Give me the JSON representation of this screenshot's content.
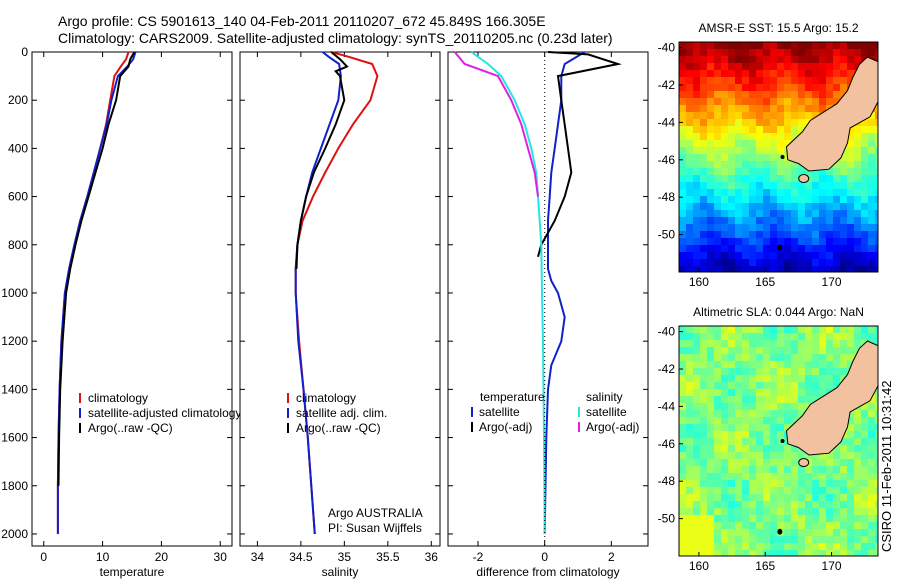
{
  "header": {
    "line1": "Argo profile: CS 5901613_140 04-Feb-2011 20110207_672 45.849S 166.305E",
    "line2": "Climatology: CARS2009. Satellite-adjusted climatology: synTS_20110205.nc (0.23d later)"
  },
  "side_label": "CSIRO 11-Feb-2011 10:31:42",
  "colors": {
    "climatology": "#dd1111",
    "satellite": "#1020cc",
    "argo": "#000000",
    "salinity_satellite": "#22e6e6",
    "salinity_argo": "#e020e0",
    "land": "#f2c19f"
  },
  "chart_data": [
    {
      "type": "line",
      "panel": "temperature",
      "xlabel": "temperature",
      "ylabel": "",
      "xlim": [
        -2,
        32
      ],
      "ylim": [
        2050,
        0
      ],
      "y_reversed": true,
      "xticks": [
        0,
        10,
        20,
        30
      ],
      "yticks": [
        0,
        200,
        400,
        600,
        800,
        1000,
        1200,
        1400,
        1600,
        1800,
        2000
      ],
      "legend": {
        "placement": "lower-right",
        "entries": [
          "climatology",
          "satellite-adjusted climatology",
          "Argo(..raw -QC)"
        ]
      },
      "series": [
        {
          "name": "climatology",
          "color_key": "climatology",
          "x": [
            14.4,
            14.0,
            13.1,
            12.0,
            11.3,
            10.6,
            9.6,
            8.5,
            7.4,
            6.2,
            5.2,
            4.3,
            3.6,
            3.0,
            2.7,
            2.5,
            2.4,
            2.4
          ],
          "y": [
            0,
            30,
            60,
            100,
            200,
            300,
            400,
            500,
            600,
            700,
            800,
            900,
            1000,
            1200,
            1400,
            1600,
            1800,
            2000
          ]
        },
        {
          "name": "satellite-adjusted climatology",
          "color_key": "satellite",
          "x": [
            15.6,
            15.2,
            14.2,
            12.6,
            11.5,
            10.7,
            9.6,
            8.5,
            7.4,
            6.2,
            5.2,
            4.3,
            3.6,
            3.0,
            2.7,
            2.5,
            2.4,
            2.4
          ],
          "y": [
            0,
            30,
            60,
            100,
            200,
            300,
            400,
            500,
            600,
            700,
            800,
            900,
            1000,
            1200,
            1400,
            1600,
            1800,
            2000
          ]
        },
        {
          "name": "Argo(..raw -QC)",
          "color_key": "argo",
          "x": [
            15.4,
            14.7,
            14.4,
            13.0,
            12.3,
            11.0,
            10.0,
            8.8,
            7.6,
            6.4,
            5.4,
            4.5,
            3.8,
            3.2,
            2.8,
            2.6,
            2.5
          ],
          "y": [
            0,
            30,
            60,
            100,
            200,
            300,
            400,
            500,
            600,
            700,
            800,
            900,
            1000,
            1200,
            1400,
            1600,
            1800
          ]
        }
      ]
    },
    {
      "type": "line",
      "panel": "salinity",
      "xlabel": "salinity",
      "ylabel": "",
      "xlim": [
        33.8,
        36.1
      ],
      "ylim": [
        2050,
        0
      ],
      "y_reversed": true,
      "xticks": [
        34,
        34.5,
        35,
        35.5,
        36
      ],
      "legend": {
        "placement": "lower-right",
        "entries": [
          "climatology",
          "satellite adj. clim.",
          "Argo(..raw -QC)"
        ]
      },
      "annotation": [
        "Argo AUSTRALIA",
        "PI: Susan Wijffels"
      ],
      "series": [
        {
          "name": "climatology",
          "color_key": "climatology",
          "x": [
            34.85,
            35.05,
            35.32,
            35.38,
            35.3,
            35.1,
            34.93,
            34.78,
            34.64,
            34.52,
            34.46,
            34.44,
            34.44,
            34.48,
            34.53,
            34.58,
            34.62,
            34.66
          ],
          "y": [
            0,
            20,
            50,
            100,
            200,
            300,
            400,
            500,
            600,
            700,
            800,
            900,
            1000,
            1200,
            1400,
            1600,
            1800,
            2000
          ]
        },
        {
          "name": "satellite adj. clim.",
          "color_key": "satellite",
          "x": [
            34.75,
            34.82,
            34.94,
            34.96,
            34.93,
            34.83,
            34.73,
            34.63,
            34.56,
            34.5,
            34.46,
            34.44,
            34.44,
            34.47,
            34.53,
            34.58,
            34.62,
            34.66
          ],
          "y": [
            0,
            20,
            50,
            100,
            200,
            300,
            400,
            500,
            600,
            700,
            800,
            900,
            1000,
            1200,
            1400,
            1600,
            1800,
            2000
          ]
        },
        {
          "name": "Argo(..raw -QC)",
          "color_key": "argo",
          "x": [
            34.85,
            34.95,
            35.03,
            34.9,
            34.95,
            35.0,
            34.9,
            34.78,
            34.65,
            34.56,
            34.5,
            34.46,
            34.45
          ],
          "y": [
            0,
            30,
            60,
            80,
            100,
            200,
            300,
            400,
            500,
            600,
            700,
            800,
            900
          ]
        }
      ]
    },
    {
      "type": "line",
      "panel": "difference",
      "xlabel": "difference from climatology",
      "ylabel": "",
      "xlim": [
        -2.9,
        3.1
      ],
      "ylim": [
        2050,
        0
      ],
      "y_reversed": true,
      "xticks": [
        -2,
        0,
        2
      ],
      "legend": {
        "placement": "lower-right",
        "column_headers": [
          "temperature",
          "salinity"
        ],
        "entries": [
          "satellite",
          "Argo(-adj)",
          "satellite",
          "Argo(-adj)"
        ]
      },
      "series": [
        {
          "name": "temperature satellite",
          "color_key": "satellite",
          "x": [
            1.2,
            0.6,
            0.5,
            0.5,
            0.4,
            0.3,
            0.2,
            0.15,
            0.1,
            0.1,
            0.1,
            0.2,
            0.4,
            0.6,
            0.5,
            0.2,
            0.1,
            0.05,
            0.0
          ],
          "y": [
            0,
            50,
            100,
            200,
            300,
            400,
            500,
            600,
            700,
            800,
            900,
            950,
            1000,
            1100,
            1200,
            1300,
            1400,
            1600,
            2000
          ]
        },
        {
          "name": "temperature Argo(-adj)",
          "color_key": "argo",
          "x": [
            0.1,
            1.3,
            2.2,
            0.4,
            0.5,
            0.7,
            0.8,
            0.6,
            0.3,
            -0.1,
            -0.2
          ],
          "y": [
            0,
            10,
            50,
            100,
            200,
            400,
            500,
            600,
            700,
            800,
            850
          ]
        },
        {
          "name": "salinity satellite",
          "color_key": "salinity_satellite",
          "x": [
            -2.2,
            -1.7,
            -1.3,
            -0.9,
            -0.6,
            -0.4,
            -0.25,
            -0.2,
            -0.15,
            -0.1,
            -0.08,
            -0.05,
            -0.02,
            0.0
          ],
          "y": [
            0,
            50,
            100,
            200,
            300,
            400,
            500,
            600,
            700,
            800,
            1000,
            1200,
            1600,
            2000
          ]
        },
        {
          "name": "salinity Argo(-adj)",
          "color_key": "salinity_argo",
          "x": [
            -2.7,
            -2.4,
            -1.4,
            -1.0,
            -0.7,
            -0.5,
            -0.3,
            -0.2
          ],
          "y": [
            0,
            50,
            100,
            200,
            300,
            400,
            500,
            600
          ]
        },
        {
          "name": "zero",
          "color_key": "argo",
          "dotted": true,
          "x": [
            0,
            0
          ],
          "y": [
            0,
            2050
          ]
        }
      ]
    },
    {
      "type": "heatmap",
      "panel": "sst-map",
      "title": "AMSR-E SST: 15.5 Argo: 15.2",
      "xlim": [
        158.5,
        173.5
      ],
      "ylim": [
        -52,
        -39.7
      ],
      "xticks": [
        160,
        165,
        170
      ],
      "yticks": [
        -40,
        -42,
        -44,
        -46,
        -48,
        -50
      ],
      "argo_position": [
        166.305,
        -45.849
      ]
    },
    {
      "type": "heatmap",
      "panel": "sla-map",
      "title": "Altimetric SLA: 0.044 Argo: NaN",
      "xlim": [
        158.5,
        173.5
      ],
      "ylim": [
        -52,
        -39.7
      ],
      "xticks": [
        160,
        165,
        170
      ],
      "yticks": [
        -40,
        -42,
        -44,
        -46,
        -48,
        -50
      ],
      "argo_position": [
        166.305,
        -45.849
      ]
    }
  ]
}
